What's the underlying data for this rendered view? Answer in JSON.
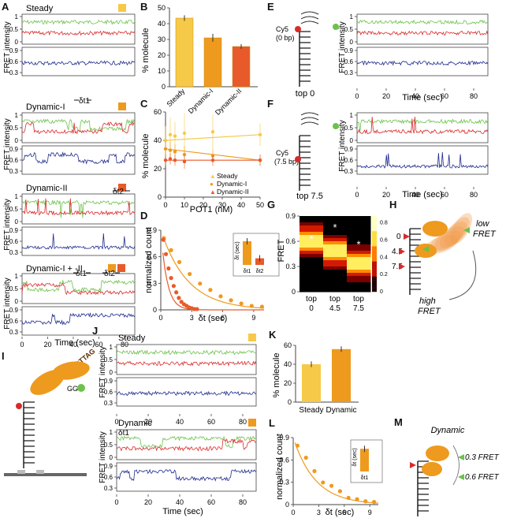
{
  "colors": {
    "green": "#6cc24a",
    "red": "#d92a2a",
    "blue": "#1f2b8c",
    "steady": "#f7c948",
    "dyn1": "#ee9a1e",
    "dyn2": "#e85a2a",
    "dark": "#333333"
  },
  "panels": {
    "A": "A",
    "B": "B",
    "C": "C",
    "D": "D",
    "E": "E",
    "F": "F",
    "G": "G",
    "H": "H",
    "I": "I",
    "J": "J",
    "K": "K",
    "L": "L",
    "M": "M"
  },
  "panelA": {
    "titles": [
      "Steady",
      "Dynamic-I",
      "Dynamic-II",
      "Dynamic-I + -II"
    ],
    "ylabel": "FRET intensity",
    "xlabel": "Time (sec)",
    "dt1": "δt1",
    "dt2": "δt2",
    "yticks_top": [
      "1",
      "0.5",
      "0"
    ],
    "yticks_bottom": [
      "0.9",
      "0.6",
      "0.3"
    ],
    "xticks": [
      "0",
      "20",
      "40",
      "60",
      "80"
    ]
  },
  "panelE": {
    "label": "Cy5",
    "sub": "(0 bp)",
    "caption": "top 0"
  },
  "panelF": {
    "label": "Cy5",
    "sub": "(7.5 bp)",
    "caption": "top 7.5"
  },
  "panelH": {
    "marks": [
      "0",
      "4.5",
      "7.5"
    ],
    "low": "low",
    "lowFRET": "FRET",
    "high": "high",
    "highFRET": "FRET"
  },
  "panelI": {
    "seq": "TTAGGGTTAG",
    "tail": "GG"
  },
  "panelJ": {
    "titles": [
      "Steady",
      "Dynamic"
    ],
    "ylabel": "FRET intensity",
    "xlabel": "Time (sec)",
    "dt1": "δt1"
  },
  "panelM": {
    "title": "Dynamic",
    "f1": "0.3 FRET",
    "f2": "0.6 FRET"
  },
  "chart_data": [
    {
      "id": "B",
      "type": "bar",
      "categories": [
        "Steady",
        "Dynamic-I",
        "Dynamic-II"
      ],
      "values": [
        43.5,
        31,
        25.5
      ],
      "errors": [
        1.8,
        2.5,
        1.5
      ],
      "ylabel": "% molecule",
      "ylim": [
        0,
        50
      ],
      "yticks": [
        "0",
        "10",
        "20",
        "30",
        "40",
        "50"
      ]
    },
    {
      "id": "C",
      "type": "line",
      "xlabel": "POT1 (nM)",
      "ylabel": "% molecule",
      "xlim": [
        0,
        50
      ],
      "ylim": [
        0,
        60
      ],
      "xticks": [
        "0",
        "10",
        "20",
        "30",
        "40",
        "50"
      ],
      "yticks": [
        "0",
        "20",
        "40",
        "60"
      ],
      "series": [
        {
          "name": "Steady",
          "x": [
            0,
            2.5,
            5,
            10,
            25,
            50
          ],
          "y": [
            40,
            44,
            43,
            45,
            46,
            44
          ],
          "errors": [
            10,
            12,
            10,
            14,
            12,
            8
          ]
        },
        {
          "name": "Dynamic-I",
          "x": [
            0,
            2.5,
            5,
            10,
            25,
            50
          ],
          "y": [
            34,
            33,
            32,
            30,
            29,
            26
          ],
          "errors": [
            6,
            6,
            5,
            6,
            5,
            4
          ]
        },
        {
          "name": "Dynamic-II",
          "x": [
            0,
            2.5,
            5,
            10,
            25,
            50
          ],
          "y": [
            26,
            27,
            26,
            25,
            26,
            26
          ],
          "errors": [
            4,
            4,
            4,
            5,
            4,
            4
          ]
        }
      ]
    },
    {
      "id": "D",
      "type": "scatter",
      "xlabel": "δt (sec)",
      "ylabel": "normalized count",
      "xlim": [
        0,
        10
      ],
      "ylim": [
        0,
        1
      ],
      "xticks": [
        "0",
        "3",
        "6",
        "9"
      ],
      "yticks": [
        "0",
        "0.3",
        "0.6",
        "0.9"
      ],
      "series": [
        {
          "name": "δt1",
          "x": [
            0.3,
            1,
            1.8,
            2.8,
            3.8,
            4.8,
            5.8,
            6.8,
            7.8,
            8.8,
            9.8
          ],
          "y": [
            0.9,
            0.75,
            0.6,
            0.45,
            0.33,
            0.25,
            0.17,
            0.12,
            0.08,
            0.05,
            0.04
          ]
        },
        {
          "name": "δt2",
          "x": [
            0.25,
            0.5,
            0.75,
            1,
            1.25,
            1.5,
            1.75,
            2,
            2.25,
            2.5,
            2.75,
            3,
            3.25,
            3.5
          ],
          "y": [
            0.88,
            0.7,
            0.52,
            0.4,
            0.3,
            0.22,
            0.15,
            0.1,
            0.07,
            0.05,
            0.03,
            0.02,
            0.01,
            0.01
          ]
        }
      ],
      "inset": {
        "type": "bar",
        "categories": [
          "δt1",
          "δt2"
        ],
        "values": [
          2.5,
          0.7
        ],
        "errors": [
          0.3,
          0.1
        ],
        "ylabel": "δt (sec)",
        "yticks": [
          "0",
          "1",
          "2",
          "3"
        ]
      }
    },
    {
      "id": "G",
      "type": "heatmap",
      "categories": [
        "top\n0",
        "top\n4.5",
        "top\n7.5"
      ],
      "ylabel": "FRET",
      "yticks": [
        "0",
        "0.3",
        "0.6",
        "0.9"
      ],
      "colorbar": [
        "0",
        "0.2",
        "0.4",
        "0.6",
        "0.8"
      ],
      "peaks": [
        0.7,
        0.55,
        0.4
      ],
      "stars": [
        0.65,
        0.8,
        0.58
      ]
    },
    {
      "id": "K",
      "type": "bar",
      "categories": [
        "Steady",
        "Dynamic"
      ],
      "values": [
        40,
        56
      ],
      "errors": [
        3,
        3
      ],
      "ylabel": "% molecule",
      "ylim": [
        0,
        60
      ],
      "yticks": [
        "0",
        "20",
        "40",
        "60"
      ]
    },
    {
      "id": "L",
      "type": "scatter",
      "xlabel": "δt (sec)",
      "ylabel": "normalized count",
      "xlim": [
        0,
        10
      ],
      "ylim": [
        0,
        1
      ],
      "xticks": [
        "0",
        "3",
        "6",
        "9"
      ],
      "yticks": [
        "0",
        "0.3",
        "0.6",
        "0.9"
      ],
      "series": [
        {
          "name": "δt1",
          "x": [
            0.5,
            1.5,
            2.5,
            3.5,
            4.5,
            5.5,
            6.5,
            7.5,
            8.5,
            9.5
          ],
          "y": [
            0.88,
            0.7,
            0.5,
            0.33,
            0.28,
            0.2,
            0.1,
            0.08,
            0.05,
            0.04
          ]
        }
      ],
      "inset": {
        "type": "bar",
        "categories": [
          "δt1"
        ],
        "values": [
          2.4
        ],
        "errors": [
          0.25
        ],
        "ylabel": "δt (sec)",
        "yticks": [
          "0",
          "1",
          "2",
          "3"
        ]
      }
    }
  ]
}
